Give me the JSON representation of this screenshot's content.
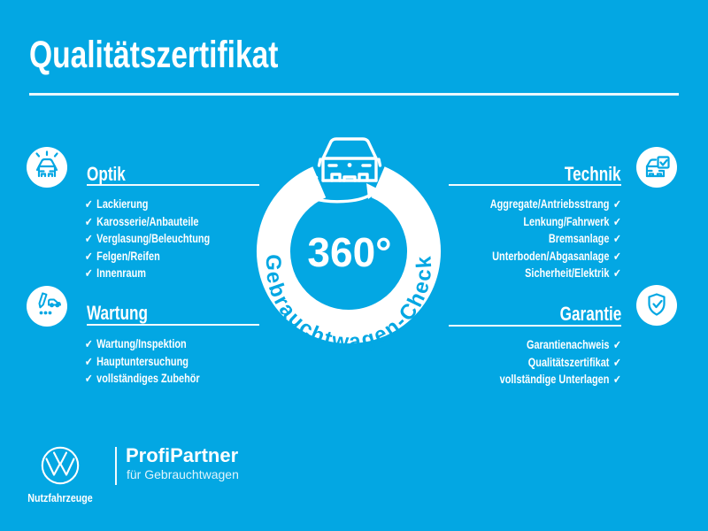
{
  "colors": {
    "background": "#03a7e3",
    "foreground": "#ffffff"
  },
  "checkmark": "✔",
  "header": {
    "title": "Qualitätszertifikat"
  },
  "center": {
    "value": "360°",
    "ring_label": "Gebrauchtwagen-Check"
  },
  "sections": [
    {
      "id": "optik",
      "title": "Optik",
      "icon": "car-front-sparkle-icon",
      "side": "left",
      "items": [
        "Lackierung",
        "Karosserie/Anbauteile",
        "Verglasung/Beleuchtung",
        "Felgen/Reifen",
        "Innenraum"
      ]
    },
    {
      "id": "technik",
      "title": "Technik",
      "icon": "car-checklist-icon",
      "side": "right",
      "items": [
        "Aggregate/Antriebsstrang",
        "Lenkung/Fahrwerk",
        "Bremsanlage",
        "Unterboden/Abgasanlage",
        "Sicherheit/Elektrik"
      ]
    },
    {
      "id": "wartung",
      "title": "Wartung",
      "icon": "pencil-car-icon",
      "side": "left",
      "items": [
        "Wartung/Inspektion",
        "Hauptuntersuchung",
        "vollständiges Zubehör"
      ]
    },
    {
      "id": "garantie",
      "title": "Garantie",
      "icon": "shield-check-icon",
      "side": "right",
      "items": [
        "Garantienachweis",
        "Qualitätszertifikat",
        "vollständige Unterlagen"
      ]
    }
  ],
  "footer": {
    "brand": "Nutzfahrzeuge",
    "program": "ProfiPartner",
    "program_sub": "für Gebrauchtwagen"
  }
}
